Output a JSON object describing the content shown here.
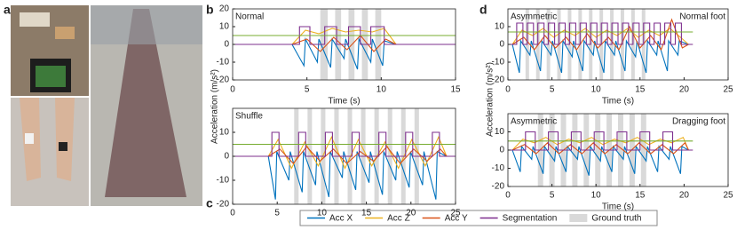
{
  "photo_panel": "a",
  "chart_data": [
    {
      "type": "line",
      "panel": "b",
      "annotations": [
        "Normal"
      ],
      "xlabel": "Time (s)",
      "ylabel": "Acceleration (m/s²)",
      "xlim": [
        0,
        15
      ],
      "ylim": [
        -20,
        20
      ],
      "xticks": [
        0,
        5,
        10,
        15
      ],
      "yticks": [
        -20,
        -10,
        0,
        10,
        20
      ],
      "ground_truth": {
        "name": "Ground truth",
        "color": "#d9d9d9",
        "intervals": [
          [
            5.9,
            6.4
          ],
          [
            6.9,
            7.3
          ],
          [
            7.8,
            8.2
          ],
          [
            8.7,
            9.1
          ],
          [
            9.6,
            10
          ]
        ]
      },
      "series": [
        {
          "name": "Acc X",
          "color": "#0072bd",
          "x": [
            4,
            4.8,
            4.9,
            5.7,
            5.8,
            6.6,
            6.7,
            7.5,
            7.6,
            8.4,
            8.5,
            9.3,
            9.4,
            10.1,
            10.2,
            11
          ],
          "values": [
            0,
            -12,
            3,
            -10,
            3,
            -13,
            3,
            -8,
            3,
            -14,
            3,
            -10,
            3,
            -12,
            2,
            0
          ]
        },
        {
          "name": "Acc Z",
          "color": "#edb120",
          "x": [
            4,
            4.9,
            5.8,
            6.7,
            7.6,
            8.5,
            9.4,
            10.2,
            11
          ],
          "values": [
            0,
            8,
            6,
            9,
            7,
            8,
            7,
            9,
            0
          ]
        },
        {
          "name": "Acc Y",
          "color": "#d95319",
          "x": [
            4,
            5,
            5.9,
            6.8,
            7.7,
            8.6,
            9.5,
            10.3,
            11
          ],
          "values": [
            0,
            3,
            -4,
            4,
            -3,
            5,
            -4,
            3,
            0
          ]
        },
        {
          "name": "Segmentation",
          "color": "#7e2f8e",
          "x": [
            0,
            4.5,
            4.5,
            5.2,
            5.2,
            6.2,
            6.2,
            7,
            7,
            7.8,
            7.8,
            8.6,
            8.6,
            9.3,
            9.3,
            10.2,
            10.2,
            15
          ],
          "values": [
            0,
            0,
            10,
            10,
            0,
            0,
            10,
            10,
            0,
            0,
            10,
            10,
            0,
            0,
            10,
            10,
            0,
            0
          ]
        },
        {
          "color": "#77ac30",
          "x": [
            0,
            15
          ],
          "values": [
            5,
            5
          ]
        }
      ]
    },
    {
      "type": "line",
      "panel": "c",
      "annotations": [
        "Shuffle"
      ],
      "xlim": [
        0,
        25
      ],
      "ylim": [
        -20,
        20
      ],
      "xticks": [
        0,
        5,
        10,
        15,
        20,
        25
      ],
      "yticks": [
        -20,
        -10,
        0,
        10
      ],
      "ground_truth": {
        "name": "Ground truth",
        "color": "#d9d9d9",
        "intervals": [
          [
            6.9,
            7.4
          ],
          [
            8.4,
            8.9
          ],
          [
            9.9,
            10.4
          ],
          [
            11.4,
            11.9
          ],
          [
            12.9,
            13.4
          ],
          [
            14.4,
            14.9
          ],
          [
            15.9,
            16.4
          ],
          [
            17.4,
            17.9
          ],
          [
            18.9,
            19.4
          ],
          [
            20.4,
            20.9
          ]
        ]
      },
      "series": [
        {
          "name": "Acc X",
          "color": "#0072bd",
          "x": [
            4,
            4.8,
            4.95,
            6.3,
            6.45,
            7.8,
            7.95,
            9.3,
            9.45,
            10.8,
            10.95,
            12.3,
            12.45,
            13.8,
            13.95,
            15.3,
            15.45,
            16.8,
            16.95,
            18.3,
            18.45,
            19.8,
            19.95,
            21.3,
            21.45,
            22.8,
            22.95,
            24
          ],
          "values": [
            0,
            -18,
            2,
            -10,
            2,
            -15,
            2,
            -12,
            2,
            -17,
            2,
            -9,
            2,
            -14,
            2,
            -11,
            2,
            -16,
            2,
            -10,
            2,
            -13,
            2,
            -12,
            2,
            -18,
            2,
            0
          ]
        },
        {
          "name": "Acc Z",
          "color": "#edb120",
          "x": [
            4,
            5.1,
            6.6,
            8.1,
            9.6,
            11.1,
            12.6,
            14.1,
            15.6,
            17.1,
            18.6,
            20.1,
            21.6,
            23.1,
            24
          ],
          "values": [
            0,
            7,
            -5,
            6,
            -4,
            8,
            -5,
            7,
            -4,
            6,
            -5,
            7,
            -4,
            8,
            0
          ]
        },
        {
          "name": "Acc Y",
          "color": "#d95319",
          "x": [
            4,
            5.3,
            6.8,
            8.3,
            9.8,
            11.3,
            12.8,
            14.3,
            15.8,
            17.3,
            18.8,
            20.3,
            21.8,
            23.3,
            24
          ],
          "values": [
            0,
            3,
            -3,
            4,
            -2,
            3,
            -3,
            2,
            -2,
            4,
            -3,
            3,
            -2,
            3,
            0
          ]
        },
        {
          "name": "Segmentation",
          "color": "#7e2f8e",
          "x": [
            0,
            4.4,
            4.4,
            5.2,
            5.2,
            7.4,
            7.4,
            8.2,
            8.2,
            10.4,
            10.4,
            11.2,
            11.2,
            13.4,
            13.4,
            14.2,
            14.2,
            16.4,
            16.4,
            17.2,
            17.2,
            19.4,
            19.4,
            20.2,
            20.2,
            22.4,
            22.4,
            23.2,
            23.2,
            25
          ],
          "values": [
            0,
            0,
            10,
            10,
            0,
            0,
            10,
            10,
            0,
            0,
            10,
            10,
            0,
            0,
            10,
            10,
            0,
            0,
            10,
            10,
            0,
            0,
            10,
            10,
            0,
            0,
            10,
            10,
            0,
            0
          ]
        },
        {
          "color": "#77ac30",
          "x": [
            0,
            25
          ],
          "values": [
            5,
            5
          ]
        }
      ]
    },
    {
      "type": "line",
      "panel": "d",
      "annotations": [
        "Asymmetric",
        "Normal foot"
      ],
      "xlabel": "Time (s)",
      "ylabel": "Acceleration (m/s²)",
      "xlim": [
        0,
        25
      ],
      "ylim": [
        -20,
        20
      ],
      "xticks": [
        0,
        5,
        10,
        15,
        20,
        25
      ],
      "yticks": [
        -20,
        -10,
        0,
        10
      ],
      "ground_truth": {
        "name": "Ground truth",
        "color": "#d9d9d9",
        "intervals": [
          [
            2.0,
            2.4
          ],
          [
            3.2,
            3.6
          ],
          [
            4.4,
            4.8
          ],
          [
            5.6,
            6.0
          ],
          [
            6.8,
            7.2
          ],
          [
            8.0,
            8.4
          ],
          [
            9.2,
            9.6
          ],
          [
            10.4,
            10.8
          ],
          [
            11.6,
            12.0
          ],
          [
            12.8,
            13.2
          ],
          [
            14.0,
            14.4
          ],
          [
            15.2,
            15.6
          ]
        ]
      },
      "series": [
        {
          "name": "Acc X",
          "color": "#0072bd",
          "x": [
            0.5,
            1.3,
            1.45,
            2.5,
            2.65,
            3.7,
            3.85,
            4.9,
            5.05,
            6.1,
            6.25,
            7.3,
            7.45,
            8.5,
            8.65,
            9.7,
            9.85,
            10.9,
            11.05,
            12.1,
            12.25,
            13.3,
            13.45,
            14.5,
            14.65,
            15.7,
            15.85,
            16.9,
            17.05,
            18.1,
            18.25,
            19.3,
            19.45,
            20.5
          ],
          "values": [
            0,
            -16,
            2,
            -6,
            2,
            -15,
            2,
            -6,
            2,
            -16,
            2,
            -7,
            2,
            -15,
            2,
            -6,
            2,
            -16,
            2,
            -6,
            2,
            -15,
            2,
            -7,
            2,
            -16,
            2,
            -6,
            2,
            -15,
            2,
            -6,
            2,
            0
          ]
        },
        {
          "name": "Acc Z",
          "color": "#edb120",
          "x": [
            0.5,
            1.6,
            2.8,
            4,
            5.2,
            6.4,
            7.6,
            8.8,
            10,
            11.2,
            12.4,
            13.6,
            14.8,
            16,
            17.2,
            18.4,
            19.6,
            20.5
          ],
          "values": [
            0,
            8,
            5,
            9,
            4,
            8,
            5,
            9,
            4,
            8,
            5,
            9,
            4,
            8,
            5,
            9,
            4,
            0
          ]
        },
        {
          "name": "Acc Y",
          "color": "#d95319",
          "x": [
            0.5,
            1.8,
            3,
            4.2,
            5.4,
            6.6,
            7.8,
            9,
            10.2,
            11.4,
            12.6,
            13.8,
            15,
            16.2,
            17.4,
            18.6,
            19.8,
            20.5
          ],
          "values": [
            0,
            4,
            -3,
            5,
            -2,
            4,
            -3,
            6,
            -2,
            4,
            -3,
            10,
            -2,
            5,
            -3,
            14,
            -2,
            0
          ]
        },
        {
          "name": "Segmentation",
          "color": "#7e2f8e",
          "x": [
            0,
            1,
            1,
            1.7,
            1.7,
            2.2,
            2.2,
            2.9,
            2.9,
            3.4,
            3.4,
            4.1,
            4.1,
            4.6,
            4.6,
            5.3,
            5.3,
            5.8,
            5.8,
            6.5,
            6.5,
            7,
            7,
            7.7,
            7.7,
            8.2,
            8.2,
            8.9,
            8.9,
            9.4,
            9.4,
            10.1,
            10.1,
            10.6,
            10.6,
            11.3,
            11.3,
            11.8,
            11.8,
            12.5,
            12.5,
            13,
            13,
            13.7,
            13.7,
            14.2,
            14.2,
            14.9,
            14.9,
            15.4,
            15.4,
            16.1,
            16.1,
            16.6,
            16.6,
            17.3,
            17.3,
            17.8,
            17.8,
            18.5,
            18.5,
            19,
            19,
            19.7,
            19.7,
            21
          ],
          "values": [
            0,
            0,
            12,
            12,
            0,
            0,
            12,
            12,
            0,
            0,
            12,
            12,
            0,
            0,
            12,
            12,
            0,
            0,
            12,
            12,
            0,
            0,
            12,
            12,
            0,
            0,
            12,
            12,
            0,
            0,
            12,
            12,
            0,
            0,
            12,
            12,
            0,
            0,
            12,
            12,
            0,
            0,
            12,
            12,
            0,
            0,
            12,
            12,
            0,
            0,
            12,
            12,
            0,
            0,
            12,
            12,
            0,
            0,
            12,
            12,
            0,
            0,
            12,
            12,
            0,
            0
          ]
        },
        {
          "color": "#77ac30",
          "x": [
            0,
            21
          ],
          "values": [
            7,
            7
          ]
        }
      ]
    },
    {
      "type": "line",
      "annotations": [
        "Asymmetric",
        "Dragging foot"
      ],
      "xlabel": "Time (s)",
      "xlim": [
        0,
        25
      ],
      "ylim": [
        -20,
        20
      ],
      "xticks": [
        0,
        5,
        10,
        15,
        20,
        25
      ],
      "yticks": [
        -20,
        -10,
        0,
        10
      ],
      "ground_truth": {
        "name": "Ground truth",
        "color": "#d9d9d9",
        "intervals": [
          [
            3.4,
            4.0
          ],
          [
            4.7,
            5.3
          ],
          [
            6.0,
            6.6
          ],
          [
            7.3,
            7.9
          ],
          [
            8.6,
            9.2
          ],
          [
            9.9,
            10.5
          ],
          [
            11.2,
            11.8
          ],
          [
            12.5,
            13.1
          ],
          [
            13.8,
            14.4
          ],
          [
            15.1,
            15.7
          ]
        ]
      },
      "series": [
        {
          "name": "Acc X",
          "color": "#0072bd",
          "x": [
            0.5,
            1.4,
            1.55,
            2.7,
            2.85,
            4,
            4.15,
            5.3,
            5.45,
            6.6,
            6.75,
            7.9,
            8.05,
            9.2,
            9.35,
            10.5,
            10.65,
            11.8,
            11.95,
            13.1,
            13.25,
            14.4,
            14.55,
            15.7,
            15.85,
            17,
            17.15,
            18.3,
            18.45,
            19.6,
            19.75,
            20.5
          ],
          "values": [
            0,
            -12,
            2,
            -5,
            2,
            -13,
            2,
            -6,
            2,
            -12,
            2,
            -5,
            2,
            -14,
            2,
            -6,
            2,
            -12,
            2,
            -5,
            2,
            -13,
            2,
            -6,
            2,
            -12,
            2,
            -5,
            2,
            -13,
            2,
            0
          ]
        },
        {
          "name": "Acc Z",
          "color": "#edb120",
          "x": [
            0.5,
            1.7,
            3,
            4.3,
            5.6,
            6.9,
            8.2,
            9.5,
            10.8,
            12.1,
            13.4,
            14.7,
            16,
            17.3,
            18.6,
            19.9,
            20.5
          ],
          "values": [
            0,
            6,
            4,
            7,
            3,
            6,
            4,
            7,
            3,
            6,
            4,
            7,
            3,
            6,
            4,
            7,
            0
          ]
        },
        {
          "name": "Acc Y",
          "color": "#d95319",
          "x": [
            0.5,
            1.9,
            3.2,
            4.5,
            5.8,
            7.1,
            8.4,
            9.7,
            11,
            12.3,
            13.6,
            14.9,
            16.2,
            17.5,
            18.8,
            20.1,
            20.5
          ],
          "values": [
            0,
            3,
            -2,
            4,
            -2,
            3,
            -2,
            4,
            -2,
            3,
            -2,
            4,
            -2,
            3,
            -2,
            4,
            0
          ]
        },
        {
          "name": "Segmentation",
          "color": "#7e2f8e",
          "x": [
            0,
            2,
            2,
            3.1,
            3.1,
            4.6,
            4.6,
            5.7,
            5.7,
            7.2,
            7.2,
            8.3,
            8.3,
            9.8,
            9.8,
            10.9,
            10.9,
            12.4,
            12.4,
            13.5,
            13.5,
            15,
            15,
            16.1,
            16.1,
            17.6,
            17.6,
            18.7,
            18.7,
            21
          ],
          "values": [
            0,
            0,
            10,
            10,
            0,
            0,
            10,
            10,
            0,
            0,
            10,
            10,
            0,
            0,
            10,
            10,
            0,
            0,
            10,
            10,
            0,
            0,
            10,
            10,
            0,
            0,
            10,
            10,
            0,
            0
          ]
        },
        {
          "color": "#77ac30",
          "x": [
            0,
            21
          ],
          "values": [
            5,
            5
          ]
        }
      ]
    }
  ]
}
